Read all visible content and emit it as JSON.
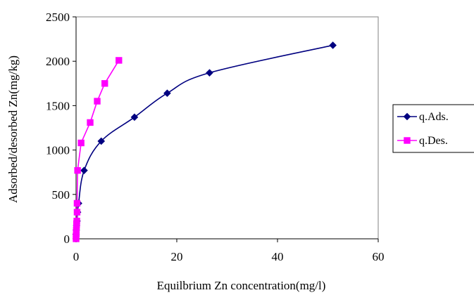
{
  "chart_data": {
    "type": "line",
    "title": "",
    "xlabel": "Equilbrium Zn concentration(mg/l)",
    "ylabel": "Adsorbed/desorbed Zn(mg/kg)",
    "xlim": [
      0,
      60
    ],
    "ylim": [
      0,
      2500
    ],
    "x_ticks": [
      "0",
      "20",
      "40",
      "60"
    ],
    "y_ticks": [
      "0",
      "500",
      "1000",
      "1500",
      "2000",
      "2500"
    ],
    "grid": false,
    "legend_position": "right",
    "series": [
      {
        "name": "q.Ads.",
        "color": "#000080",
        "marker": "diamond",
        "x": [
          0.0,
          0.05,
          0.1,
          0.2,
          0.3,
          0.5,
          1.6,
          5.0,
          11.6,
          18.1,
          26.5,
          51.0
        ],
        "y": [
          50,
          100,
          150,
          200,
          300,
          400,
          770,
          1100,
          1370,
          1640,
          1870,
          2180
        ]
      },
      {
        "name": "q.Des.",
        "color": "#FF00FF",
        "marker": "square",
        "x": [
          0.0,
          0.0,
          0.05,
          0.05,
          0.1,
          0.1,
          0.15,
          0.2,
          0.2,
          0.3,
          1.0,
          2.8,
          4.2,
          5.7,
          8.5
        ],
        "y": [
          0,
          30,
          60,
          100,
          150,
          170,
          200,
          300,
          400,
          770,
          1080,
          1310,
          1550,
          1750,
          2010
        ]
      }
    ]
  }
}
